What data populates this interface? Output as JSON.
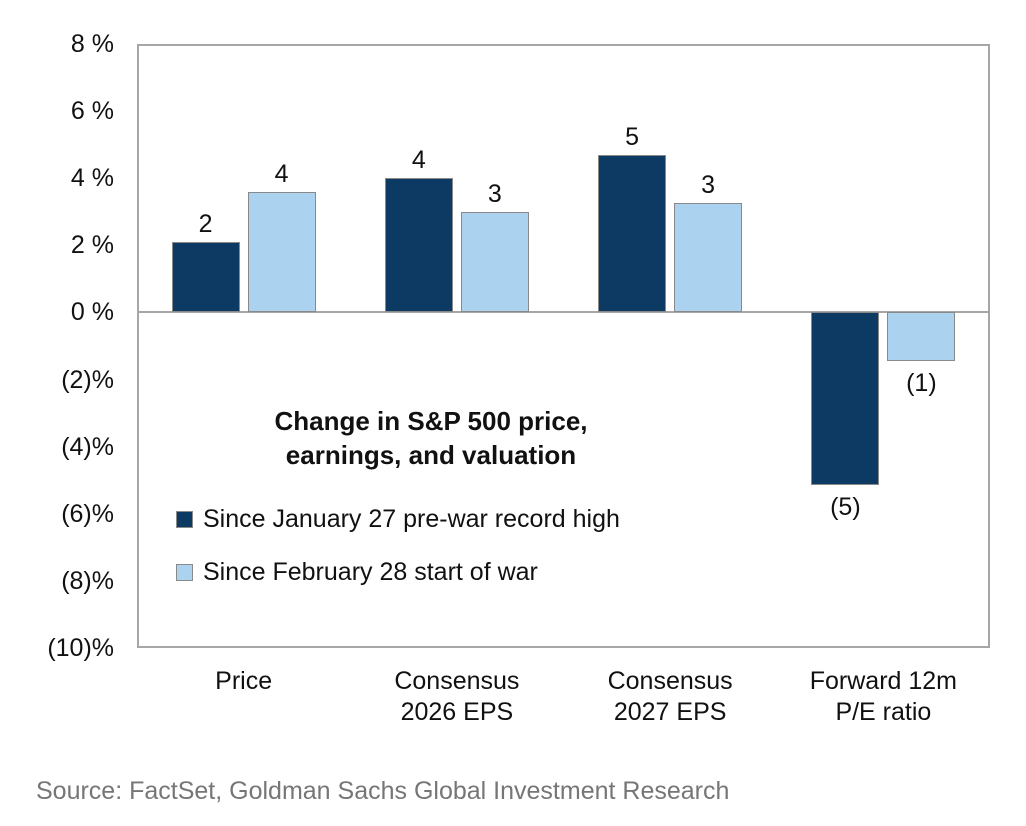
{
  "chart_data": {
    "type": "bar",
    "title": "Change in S&P 500 price,\nearnings, and valuation",
    "categories": [
      "Price",
      "Consensus\n2026 EPS",
      "Consensus\n2027 EPS",
      "Forward 12m\nP/E ratio"
    ],
    "series": [
      {
        "name": "Since January 27 pre-war record high",
        "color": "#0d3a63",
        "values": [
          2.1,
          4.0,
          4.7,
          -5.15
        ],
        "labels": [
          "2",
          "4",
          "5",
          "(5)"
        ]
      },
      {
        "name": "Since February 28 start of war",
        "color": "#abd2ee",
        "values": [
          3.6,
          3.0,
          3.25,
          -1.45
        ],
        "labels": [
          "4",
          "3",
          "3",
          "(1)"
        ]
      }
    ],
    "ylim": [
      -10,
      8
    ],
    "yticks": [
      {
        "value": 8,
        "label": "8 %"
      },
      {
        "value": 6,
        "label": "6 %"
      },
      {
        "value": 4,
        "label": "4 %"
      },
      {
        "value": 2,
        "label": "2 %"
      },
      {
        "value": 0,
        "label": "0 %"
      },
      {
        "value": -2,
        "label": "(2)%"
      },
      {
        "value": -4,
        "label": "(4)%"
      },
      {
        "value": -6,
        "label": "(6)%"
      },
      {
        "value": -8,
        "label": "(8)%"
      },
      {
        "value": -10,
        "label": "(10)%"
      }
    ],
    "grid": false,
    "legend_position": "inside-left",
    "frame_color": "#a6a6a6",
    "bar_border_color": "#8a8a8a",
    "text_color": "#111111"
  },
  "source": "Source: FactSet, Goldman Sachs Global Investment Research"
}
